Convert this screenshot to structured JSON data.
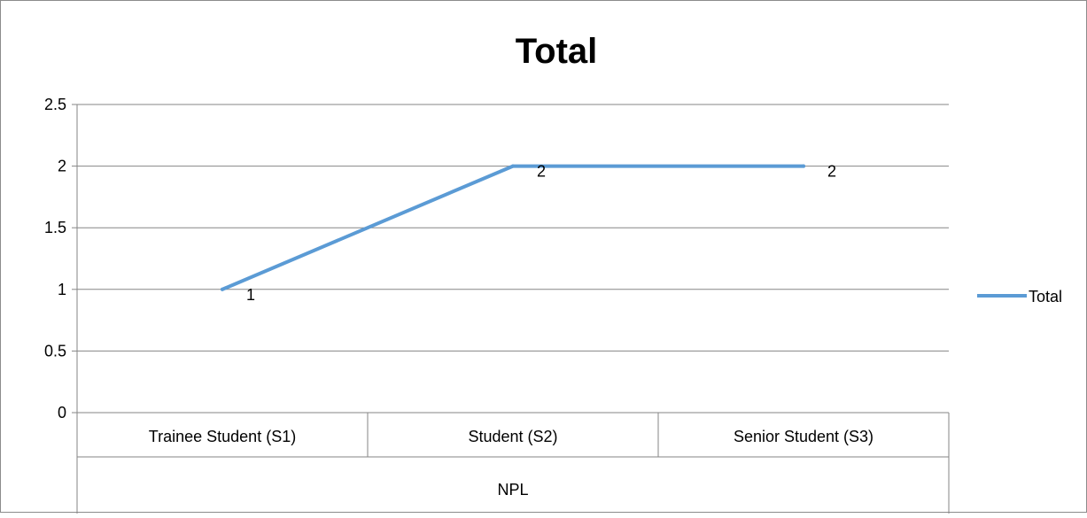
{
  "chart_data": {
    "type": "line",
    "title": "Total",
    "categories": [
      "Trainee Student (S1)",
      "Student (S2)",
      "Senior Student (S3)"
    ],
    "category_group": "NPL",
    "series": [
      {
        "name": "Total",
        "values": [
          1,
          2,
          2
        ],
        "color": "#5b9bd5"
      }
    ],
    "data_labels": [
      "1",
      "2",
      "2"
    ],
    "ylim": [
      0,
      2.5
    ],
    "y_ticks": [
      "0",
      "0.5",
      "1",
      "1.5",
      "2",
      "2.5"
    ],
    "grid": true,
    "legend": {
      "position": "right",
      "entries": [
        "Total"
      ]
    }
  }
}
